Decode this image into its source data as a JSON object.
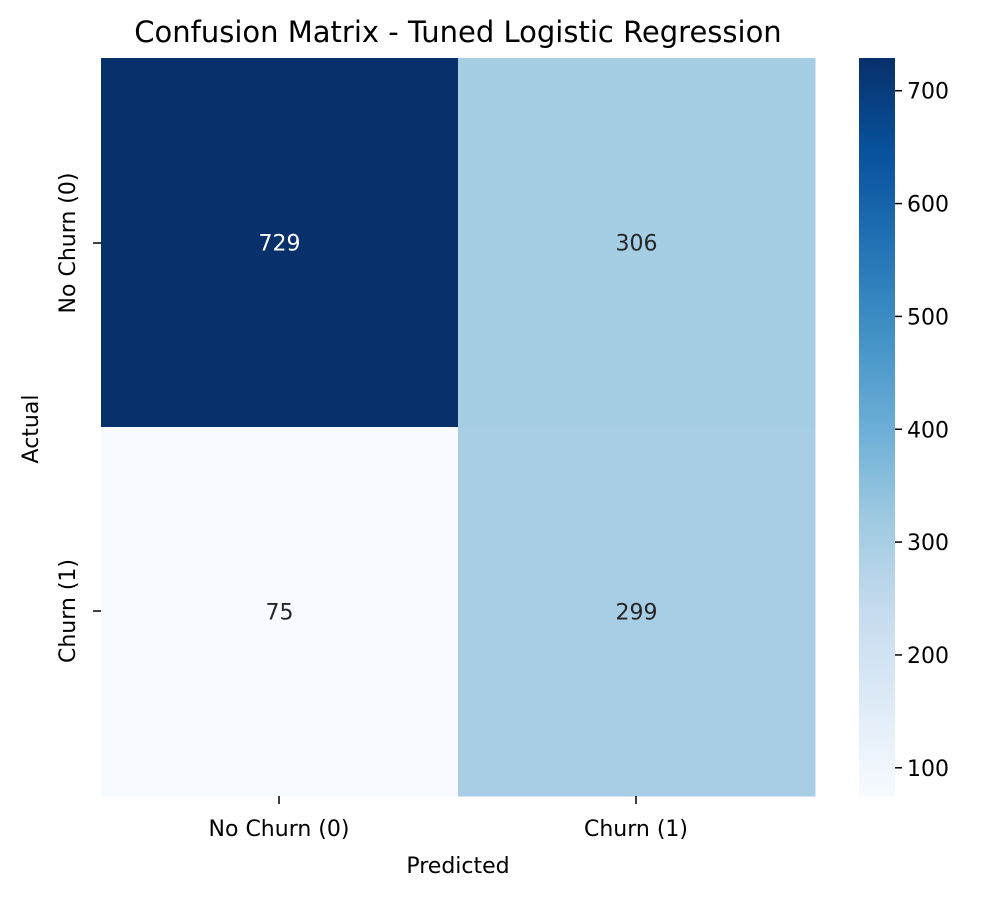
{
  "chart_data": {
    "type": "heatmap",
    "title": "Confusion Matrix - Tuned Logistic Regression",
    "xlabel": "Predicted",
    "ylabel": "Actual",
    "x_categories": [
      "No Churn (0)",
      "Churn (1)"
    ],
    "y_categories": [
      "No Churn (0)",
      "Churn (1)"
    ],
    "values": [
      [
        729,
        306
      ],
      [
        75,
        299
      ]
    ],
    "colorbar": {
      "ticks": [
        100,
        200,
        300,
        400,
        500,
        600,
        700
      ],
      "range": [
        75,
        729
      ],
      "colormap": "Blues"
    },
    "colors": {
      "low": "#f7fbff",
      "high": "#08306b",
      "annotation_dark": "#262626",
      "annotation_light": "#ffffff"
    }
  }
}
